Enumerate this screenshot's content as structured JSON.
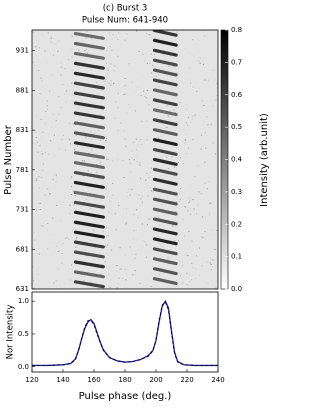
{
  "chart_data": [
    {
      "type": "heatmap",
      "title": "(c) Burst 3",
      "subtitle": "Pulse Num: 641-940",
      "ylabel": "Pulse Number",
      "xlim": [
        120,
        240
      ],
      "ylim": [
        631,
        957
      ],
      "yticks": [
        631,
        681,
        731,
        781,
        831,
        881,
        931
      ],
      "colorbar": {
        "label": "Intensity (arb.unit)",
        "lim": [
          0,
          0.8
        ],
        "ticks": [
          {
            "value": 0,
            "label": "0.0"
          },
          0.1,
          0.2,
          0.3,
          0.4,
          0.5,
          0.6,
          0.7,
          0.8
        ]
      }
    },
    {
      "type": "line",
      "xlabel": "Pulse phase (deg.)",
      "ylabel": "Nor Intensity",
      "xlim": [
        120,
        240
      ],
      "xticks": [
        120,
        140,
        160,
        180,
        200,
        220,
        240
      ],
      "ylim": [
        -0.08,
        1.14
      ],
      "yticks": [
        {
          "value": 0,
          "label": "0.0"
        },
        0.5,
        {
          "value": 1,
          "label": "1.0"
        }
      ],
      "x": [
        120,
        130,
        140,
        145,
        148,
        150,
        152,
        154,
        156,
        158,
        160,
        162,
        164,
        166,
        170,
        175,
        180,
        185,
        190,
        195,
        198,
        200,
        202,
        204,
        206,
        208,
        210,
        212,
        214,
        218,
        225,
        240
      ],
      "series": [
        {
          "color": "#1f1fd0",
          "dash": false,
          "values": [
            0.02,
            0.02,
            0.03,
            0.05,
            0.12,
            0.25,
            0.42,
            0.58,
            0.68,
            0.72,
            0.66,
            0.52,
            0.38,
            0.26,
            0.14,
            0.09,
            0.07,
            0.08,
            0.11,
            0.17,
            0.25,
            0.4,
            0.68,
            0.92,
            1.0,
            0.9,
            0.55,
            0.22,
            0.08,
            0.03,
            0.02,
            0.02
          ]
        },
        {
          "color": "#000000",
          "dash": true,
          "values": [
            0.02,
            0.02,
            0.03,
            0.05,
            0.11,
            0.24,
            0.43,
            0.6,
            0.7,
            0.71,
            0.64,
            0.5,
            0.37,
            0.25,
            0.14,
            0.09,
            0.07,
            0.08,
            0.11,
            0.16,
            0.24,
            0.41,
            0.7,
            0.94,
            0.99,
            0.87,
            0.52,
            0.2,
            0.07,
            0.03,
            0.02,
            0.02
          ]
        }
      ]
    }
  ]
}
